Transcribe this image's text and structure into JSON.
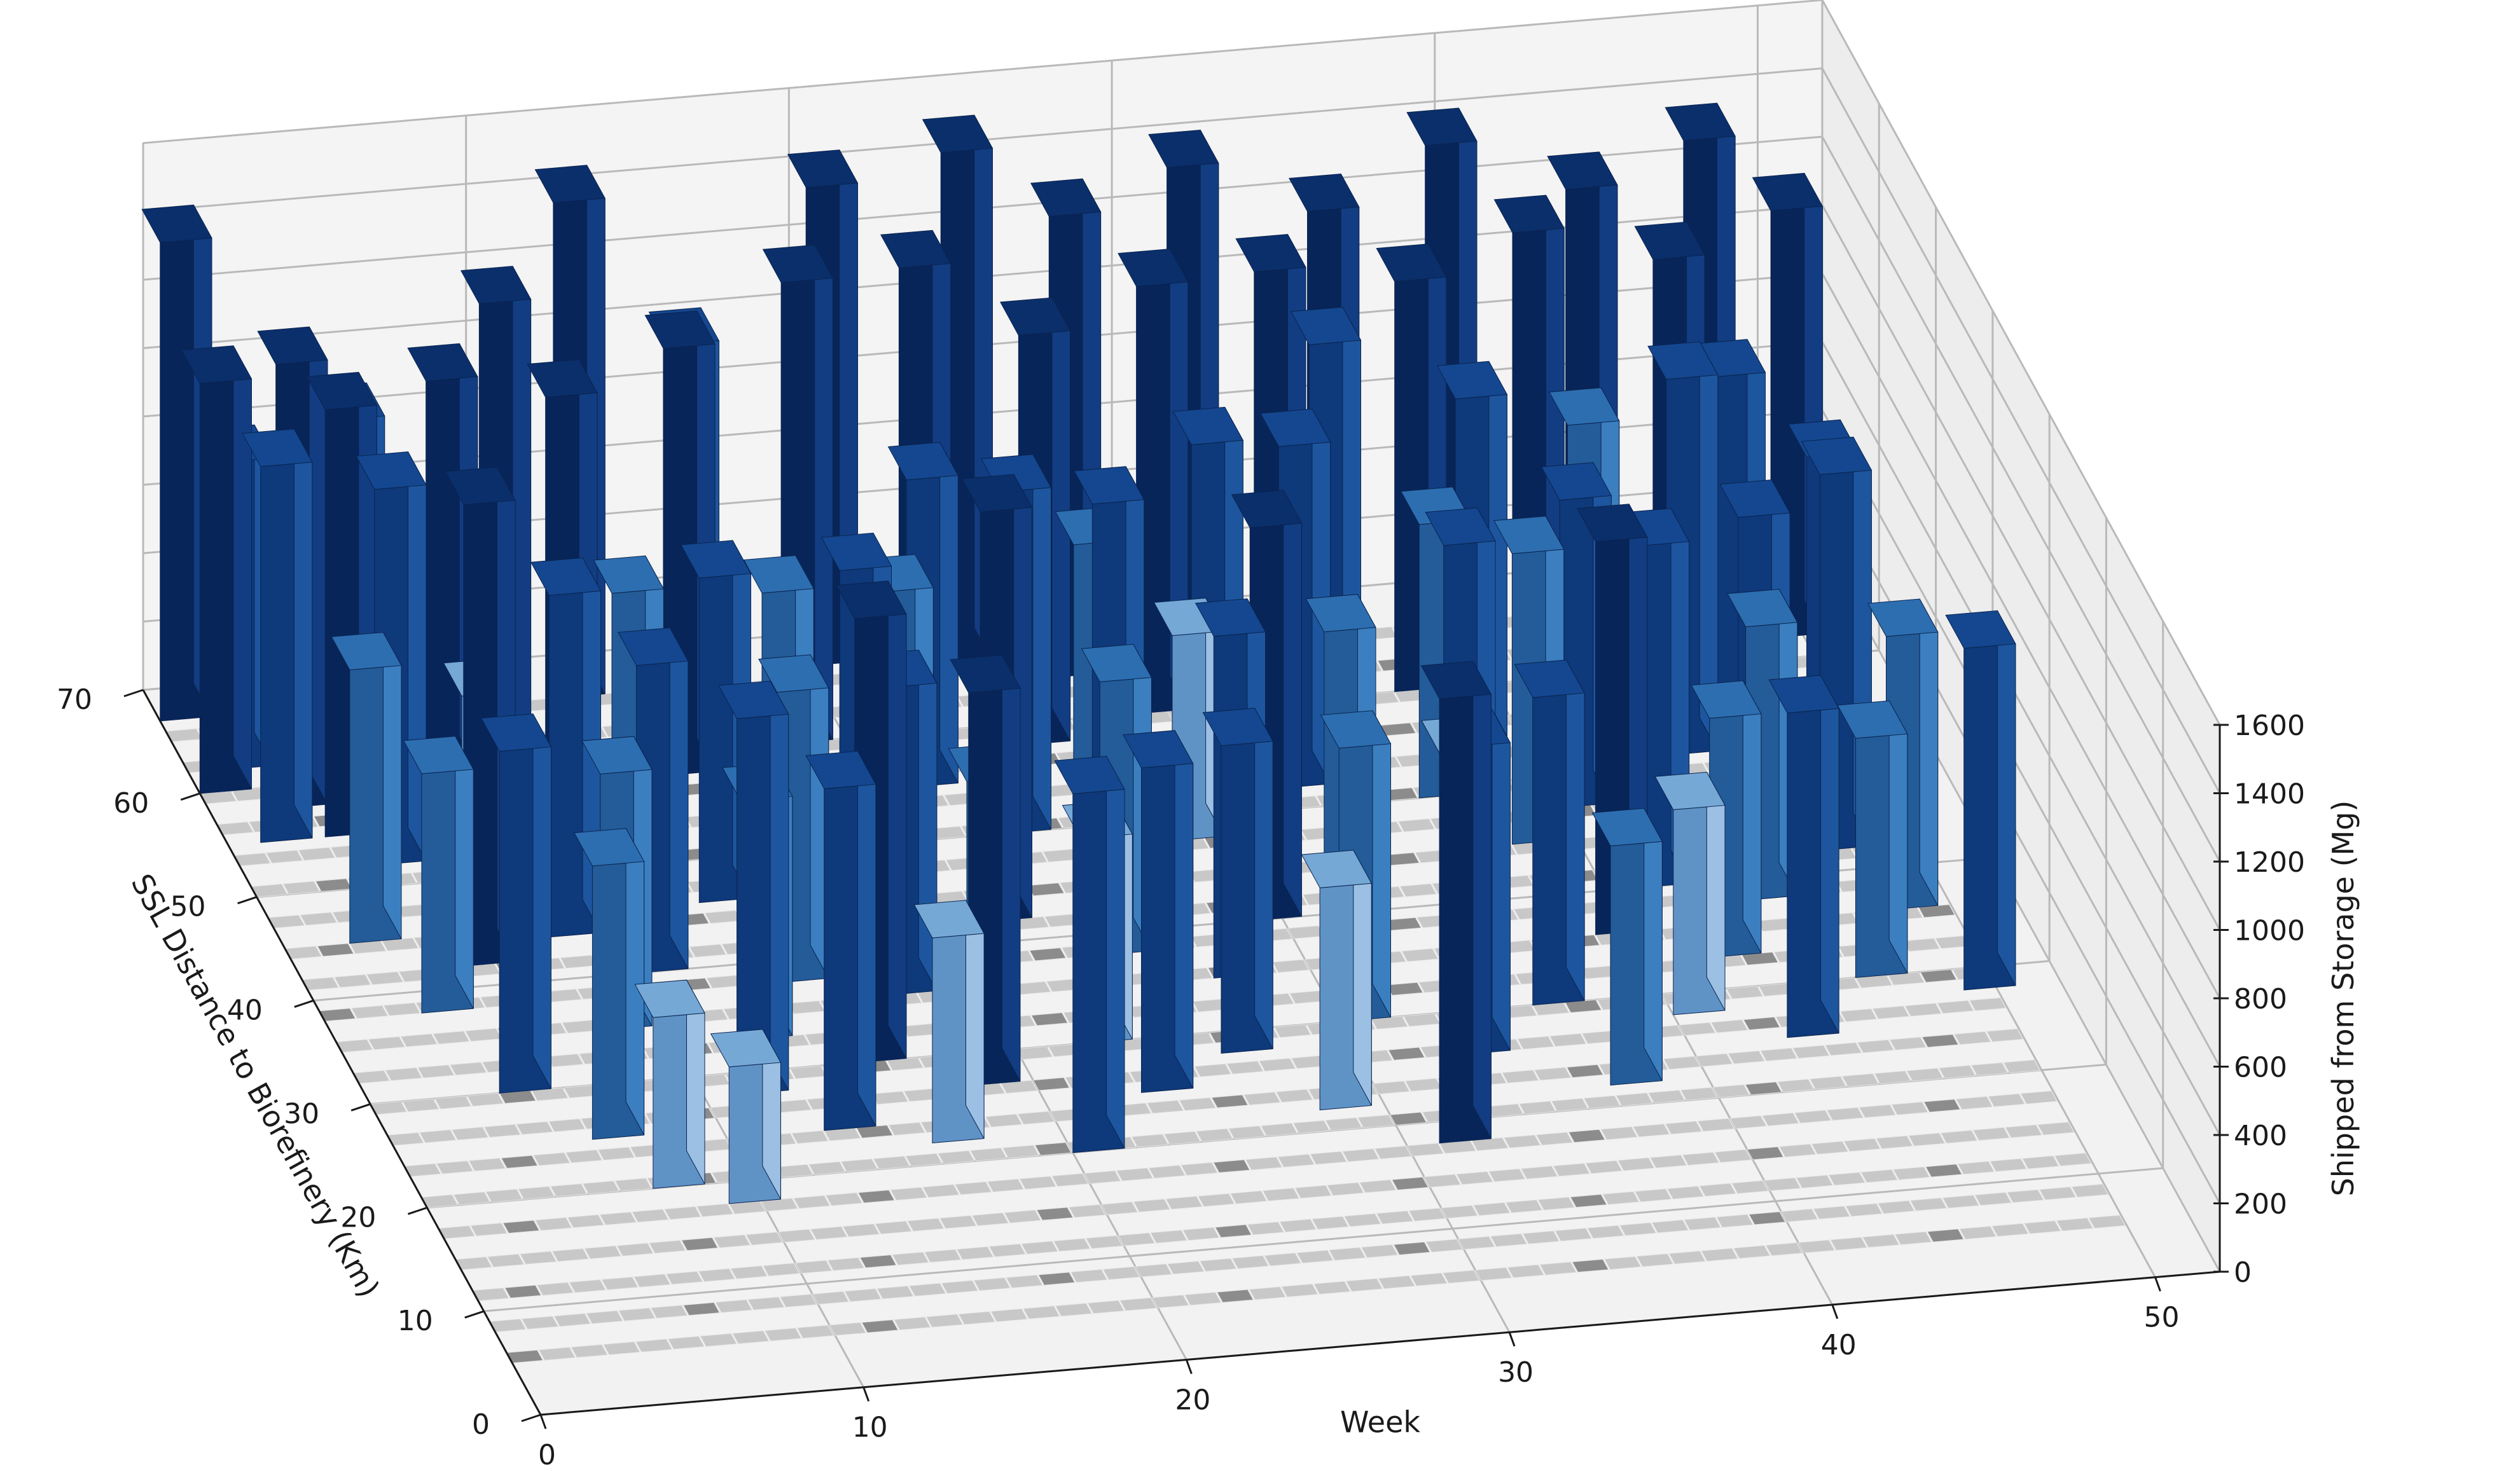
{
  "chart_data": {
    "type": "bar3d",
    "title": "",
    "xlabel": "Week",
    "ylabel": "SSL Distance to Biorefinery (Km)",
    "zlabel": "Shipped from Storage (Mg)",
    "x_ticks": [
      "0",
      "10",
      "20",
      "30",
      "40",
      "50"
    ],
    "y_ticks": [
      "0",
      "10",
      "20",
      "30",
      "40",
      "50",
      "60",
      "70"
    ],
    "z_ticks": [
      "0",
      "200",
      "400",
      "600",
      "800",
      "1000",
      "1200",
      "1400",
      "1600"
    ],
    "xlim": [
      0,
      52
    ],
    "ylim": [
      0,
      70
    ],
    "zlim": [
      0,
      1600
    ],
    "grid": true,
    "colormap": "Blues",
    "colors": {
      "zero_cell": "#c8c8c8",
      "zero_cell_dark": "#8c8c8c",
      "pane": "#f2f2f2",
      "gridline": "#b9b9b9"
    },
    "series": [
      {
        "x": [
          0,
          0,
          1,
          1,
          2,
          2,
          3,
          3,
          4,
          4,
          5,
          5,
          6,
          6,
          7,
          7,
          8,
          8,
          9,
          9,
          10,
          10,
          11,
          11,
          12,
          12,
          13,
          13,
          14,
          14,
          15,
          15,
          16,
          16,
          17,
          17,
          18,
          18,
          19,
          19,
          20,
          20,
          21,
          21,
          22,
          22,
          23,
          23,
          24,
          24,
          25,
          25,
          26,
          26,
          27,
          27,
          28,
          28,
          29,
          29,
          30,
          30,
          31,
          31,
          32,
          32,
          33,
          33,
          34,
          34,
          35,
          35,
          36,
          36,
          37,
          37,
          38,
          38,
          39,
          39,
          40,
          40,
          41,
          41,
          42,
          42,
          43,
          43,
          44,
          44,
          45,
          45,
          46,
          46,
          47,
          47,
          48,
          48,
          49,
          49
        ],
        "y": [
          67,
          60,
          62,
          55,
          58,
          45,
          55,
          38,
          52,
          30,
          65,
          42,
          48,
          25,
          60,
          20,
          44,
          35,
          62,
          18,
          56,
          40,
          50,
          28,
          66,
          33,
          46,
          24,
          58,
          38,
          63,
          30,
          52,
          22,
          44,
          36,
          60,
          27,
          48,
          33,
          67,
          20,
          55,
          42,
          62,
          30,
          50,
          25,
          66,
          38,
          58,
          45,
          54,
          28,
          64,
          35,
          48,
          22,
          60,
          40,
          56,
          30,
          66,
          18,
          52,
          44,
          62,
          26,
          58,
          35,
          64,
          40,
          50,
          30,
          60,
          22,
          55,
          45,
          66,
          36,
          48,
          28,
          62,
          40,
          58,
          33,
          64,
          25,
          52,
          38,
          60,
          45,
          55,
          30,
          66,
          42,
          50,
          36,
          62,
          28
        ],
        "z": [
          1400,
          1200,
          900,
          1100,
          1300,
          800,
          1250,
          700,
          1100,
          1000,
          900,
          1350,
          600,
          800,
          1150,
          500,
          1000,
          750,
          1300,
          400,
          1200,
          900,
          800,
          1100,
          1450,
          700,
          950,
          1000,
          1250,
          850,
          1100,
          1300,
          700,
          600,
          1000,
          900,
          1350,
          1150,
          800,
          700,
          1400,
          1050,
          900,
          1200,
          1300,
          600,
          1000,
          950,
          1500,
          800,
          1200,
          1100,
          700,
          900,
          1350,
          1000,
          600,
          650,
          1250,
          1150,
          900,
          800,
          1400,
          1300,
          1000,
          700,
          1200,
          900,
          1100,
          600,
          1300,
          1050,
          800,
          900,
          1200,
          700,
          1000,
          850,
          1400,
          1150,
          900,
          600,
          1250,
          1000,
          800,
          700,
          1300,
          950,
          1100,
          800,
          1200,
          900,
          1000,
          700,
          1350,
          1100,
          900,
          800,
          1250,
          1000
        ]
      }
    ]
  }
}
